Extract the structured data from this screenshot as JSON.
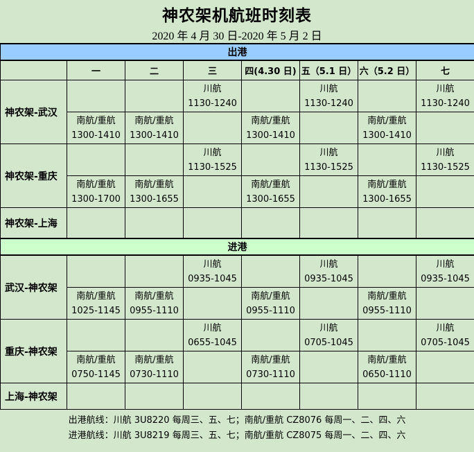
{
  "page": {
    "title": "神农架机航班时刻表",
    "subtitle": "2020 年 4 月 30 日-2020 年 5 月 2 日",
    "colors": {
      "background": "#d2e7cc",
      "departure_bar": "#99ccff",
      "arrival_bar": "#ccffcc",
      "border": "#000000"
    }
  },
  "table": {
    "day_headers": [
      "",
      "一",
      "二",
      "三",
      "四(4.30 日)",
      "五（5.1 日）",
      "六（5.2 日）",
      "七"
    ],
    "sections": [
      {
        "id": "departure",
        "label": "出港",
        "bar_color": "#99ccff",
        "groups": [
          {
            "route": "神农架-武汉",
            "rows": [
              {
                "cells": [
                  null,
                  null,
                  {
                    "airline": "川航",
                    "time": "1130-1240"
                  },
                  null,
                  {
                    "airline": "川航",
                    "time": "1130-1240"
                  },
                  null,
                  {
                    "airline": "川航",
                    "time": "1130-1240"
                  }
                ]
              },
              {
                "cells": [
                  {
                    "airline": "南航/重航",
                    "time": "1300-1410"
                  },
                  {
                    "airline": "南航/重航",
                    "time": "1300-1410"
                  },
                  null,
                  {
                    "airline": "南航/重航",
                    "time": "1300-1410"
                  },
                  null,
                  {
                    "airline": "南航/重航",
                    "time": "1300-1410"
                  },
                  null
                ]
              }
            ]
          },
          {
            "route": "神农架-重庆",
            "rows": [
              {
                "cells": [
                  null,
                  null,
                  {
                    "airline": "川航",
                    "time": "1130-1525"
                  },
                  null,
                  {
                    "airline": "川航",
                    "time": "1130-1525"
                  },
                  null,
                  {
                    "airline": "川航",
                    "time": "1130-1525"
                  }
                ]
              },
              {
                "cells": [
                  {
                    "airline": "南航/重航",
                    "time": "1300-1700"
                  },
                  {
                    "airline": "南航/重航",
                    "time": "1300-1655"
                  },
                  null,
                  {
                    "airline": "南航/重航",
                    "time": "1300-1655"
                  },
                  null,
                  {
                    "airline": "南航/重航",
                    "time": "1300-1655"
                  },
                  null
                ]
              }
            ]
          },
          {
            "route": "神农架-上海",
            "rows": [
              {
                "cells": [
                  null,
                  null,
                  null,
                  null,
                  null,
                  null,
                  null
                ]
              }
            ]
          }
        ]
      },
      {
        "id": "arrival",
        "label": "进港",
        "bar_color": "#ccffcc",
        "groups": [
          {
            "route": "武汉-神农架",
            "rows": [
              {
                "cells": [
                  null,
                  null,
                  {
                    "airline": "川航",
                    "time": "0935-1045"
                  },
                  null,
                  {
                    "airline": "川航",
                    "time": "0935-1045"
                  },
                  null,
                  {
                    "airline": "川航",
                    "time": "0935-1045"
                  }
                ]
              },
              {
                "cells": [
                  {
                    "airline": "南航/重航",
                    "time": "1025-1145"
                  },
                  {
                    "airline": "南航/重航",
                    "time": "0955-1110"
                  },
                  null,
                  {
                    "airline": "南航/重航",
                    "time": "0955-1110"
                  },
                  null,
                  {
                    "airline": "南航/重航",
                    "time": "0955-1110"
                  },
                  null
                ]
              }
            ]
          },
          {
            "route": "重庆-神农架",
            "rows": [
              {
                "cells": [
                  null,
                  null,
                  {
                    "airline": "川航",
                    "time": "0655-1045"
                  },
                  null,
                  {
                    "airline": "川航",
                    "time": "0705-1045"
                  },
                  null,
                  {
                    "airline": "川航",
                    "time": "0705-1045"
                  }
                ]
              },
              {
                "cells": [
                  {
                    "airline": "南航/重航",
                    "time": "0750-1145"
                  },
                  {
                    "airline": "南航/重航",
                    "time": "0730-1110"
                  },
                  null,
                  {
                    "airline": "南航/重航",
                    "time": "0730-1110"
                  },
                  null,
                  {
                    "airline": "南航/重航",
                    "time": "0650-1110"
                  },
                  null
                ]
              }
            ]
          },
          {
            "route": "上海-神农架",
            "rows": [
              {
                "cells": [
                  null,
                  null,
                  null,
                  null,
                  null,
                  null,
                  null
                ]
              }
            ]
          }
        ]
      }
    ]
  },
  "footer": {
    "lines": [
      "出港航线：川航 3U8220 每周三、五、七；南航/重航 CZ8076 每周一、二、四、六",
      "进港航线：川航 3U8219 每周三、五、七；南航/重航 CZ8075 每周一、二、四、六"
    ]
  }
}
